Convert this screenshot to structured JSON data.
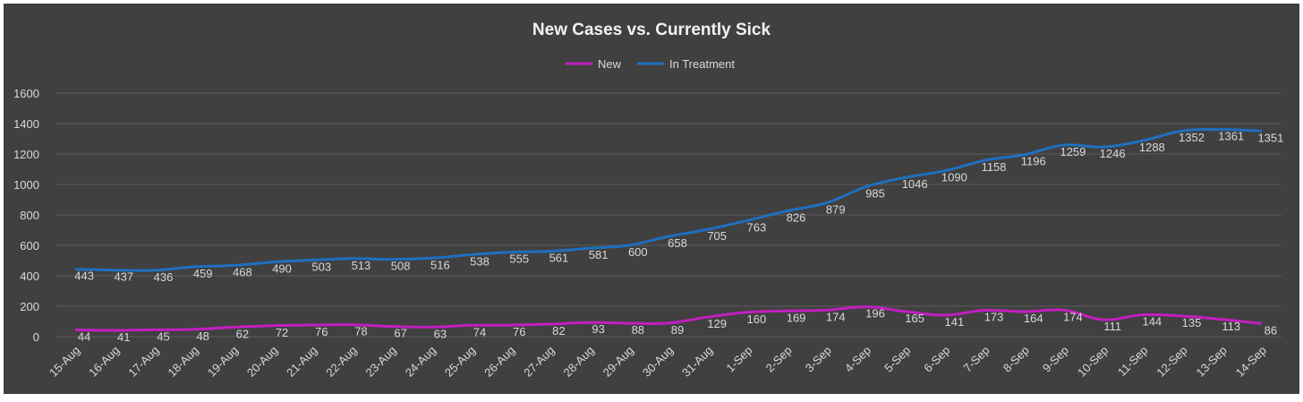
{
  "chart_data": {
    "type": "line",
    "title": "New Cases vs. Currently Sick",
    "xlabel": "",
    "ylabel": "",
    "ylim": [
      0,
      1600
    ],
    "yticks": [
      0,
      200,
      400,
      600,
      800,
      1000,
      1200,
      1400,
      1600
    ],
    "grid": true,
    "legend": "top",
    "categories": [
      "15-Aug",
      "16-Aug",
      "17-Aug",
      "18-Aug",
      "19-Aug",
      "20-Aug",
      "21-Aug",
      "22-Aug",
      "23-Aug",
      "24-Aug",
      "25-Aug",
      "26-Aug",
      "27-Aug",
      "28-Aug",
      "29-Aug",
      "30-Aug",
      "31-Aug",
      "1-Sep",
      "2-Sep",
      "3-Sep",
      "4-Sep",
      "5-Sep",
      "6-Sep",
      "7-Sep",
      "8-Sep",
      "9-Sep",
      "10-Sep",
      "11-Sep",
      "12-Sep",
      "13-Sep",
      "14-Sep"
    ],
    "series": [
      {
        "name": "New",
        "color": "#c21fbf",
        "values": [
          44,
          41,
          45,
          48,
          62,
          72,
          76,
          78,
          67,
          63,
          74,
          76,
          82,
          93,
          88,
          89,
          129,
          160,
          169,
          174,
          196,
          165,
          141,
          173,
          164,
          174,
          111,
          144,
          135,
          113,
          86
        ]
      },
      {
        "name": "In Treatment",
        "color": "#1f6fbf",
        "values": [
          443,
          437,
          436,
          459,
          468,
          490,
          503,
          513,
          508,
          516,
          538,
          555,
          561,
          581,
          600,
          658,
          705,
          763,
          826,
          879,
          985,
          1046,
          1090,
          1158,
          1196,
          1259,
          1246,
          1288,
          1352,
          1361,
          1351
        ]
      }
    ],
    "colors": {
      "background": "#404040",
      "gridline": "#5c5c5c",
      "text": "#d9d9d9",
      "title": "#f2f2f2"
    }
  }
}
